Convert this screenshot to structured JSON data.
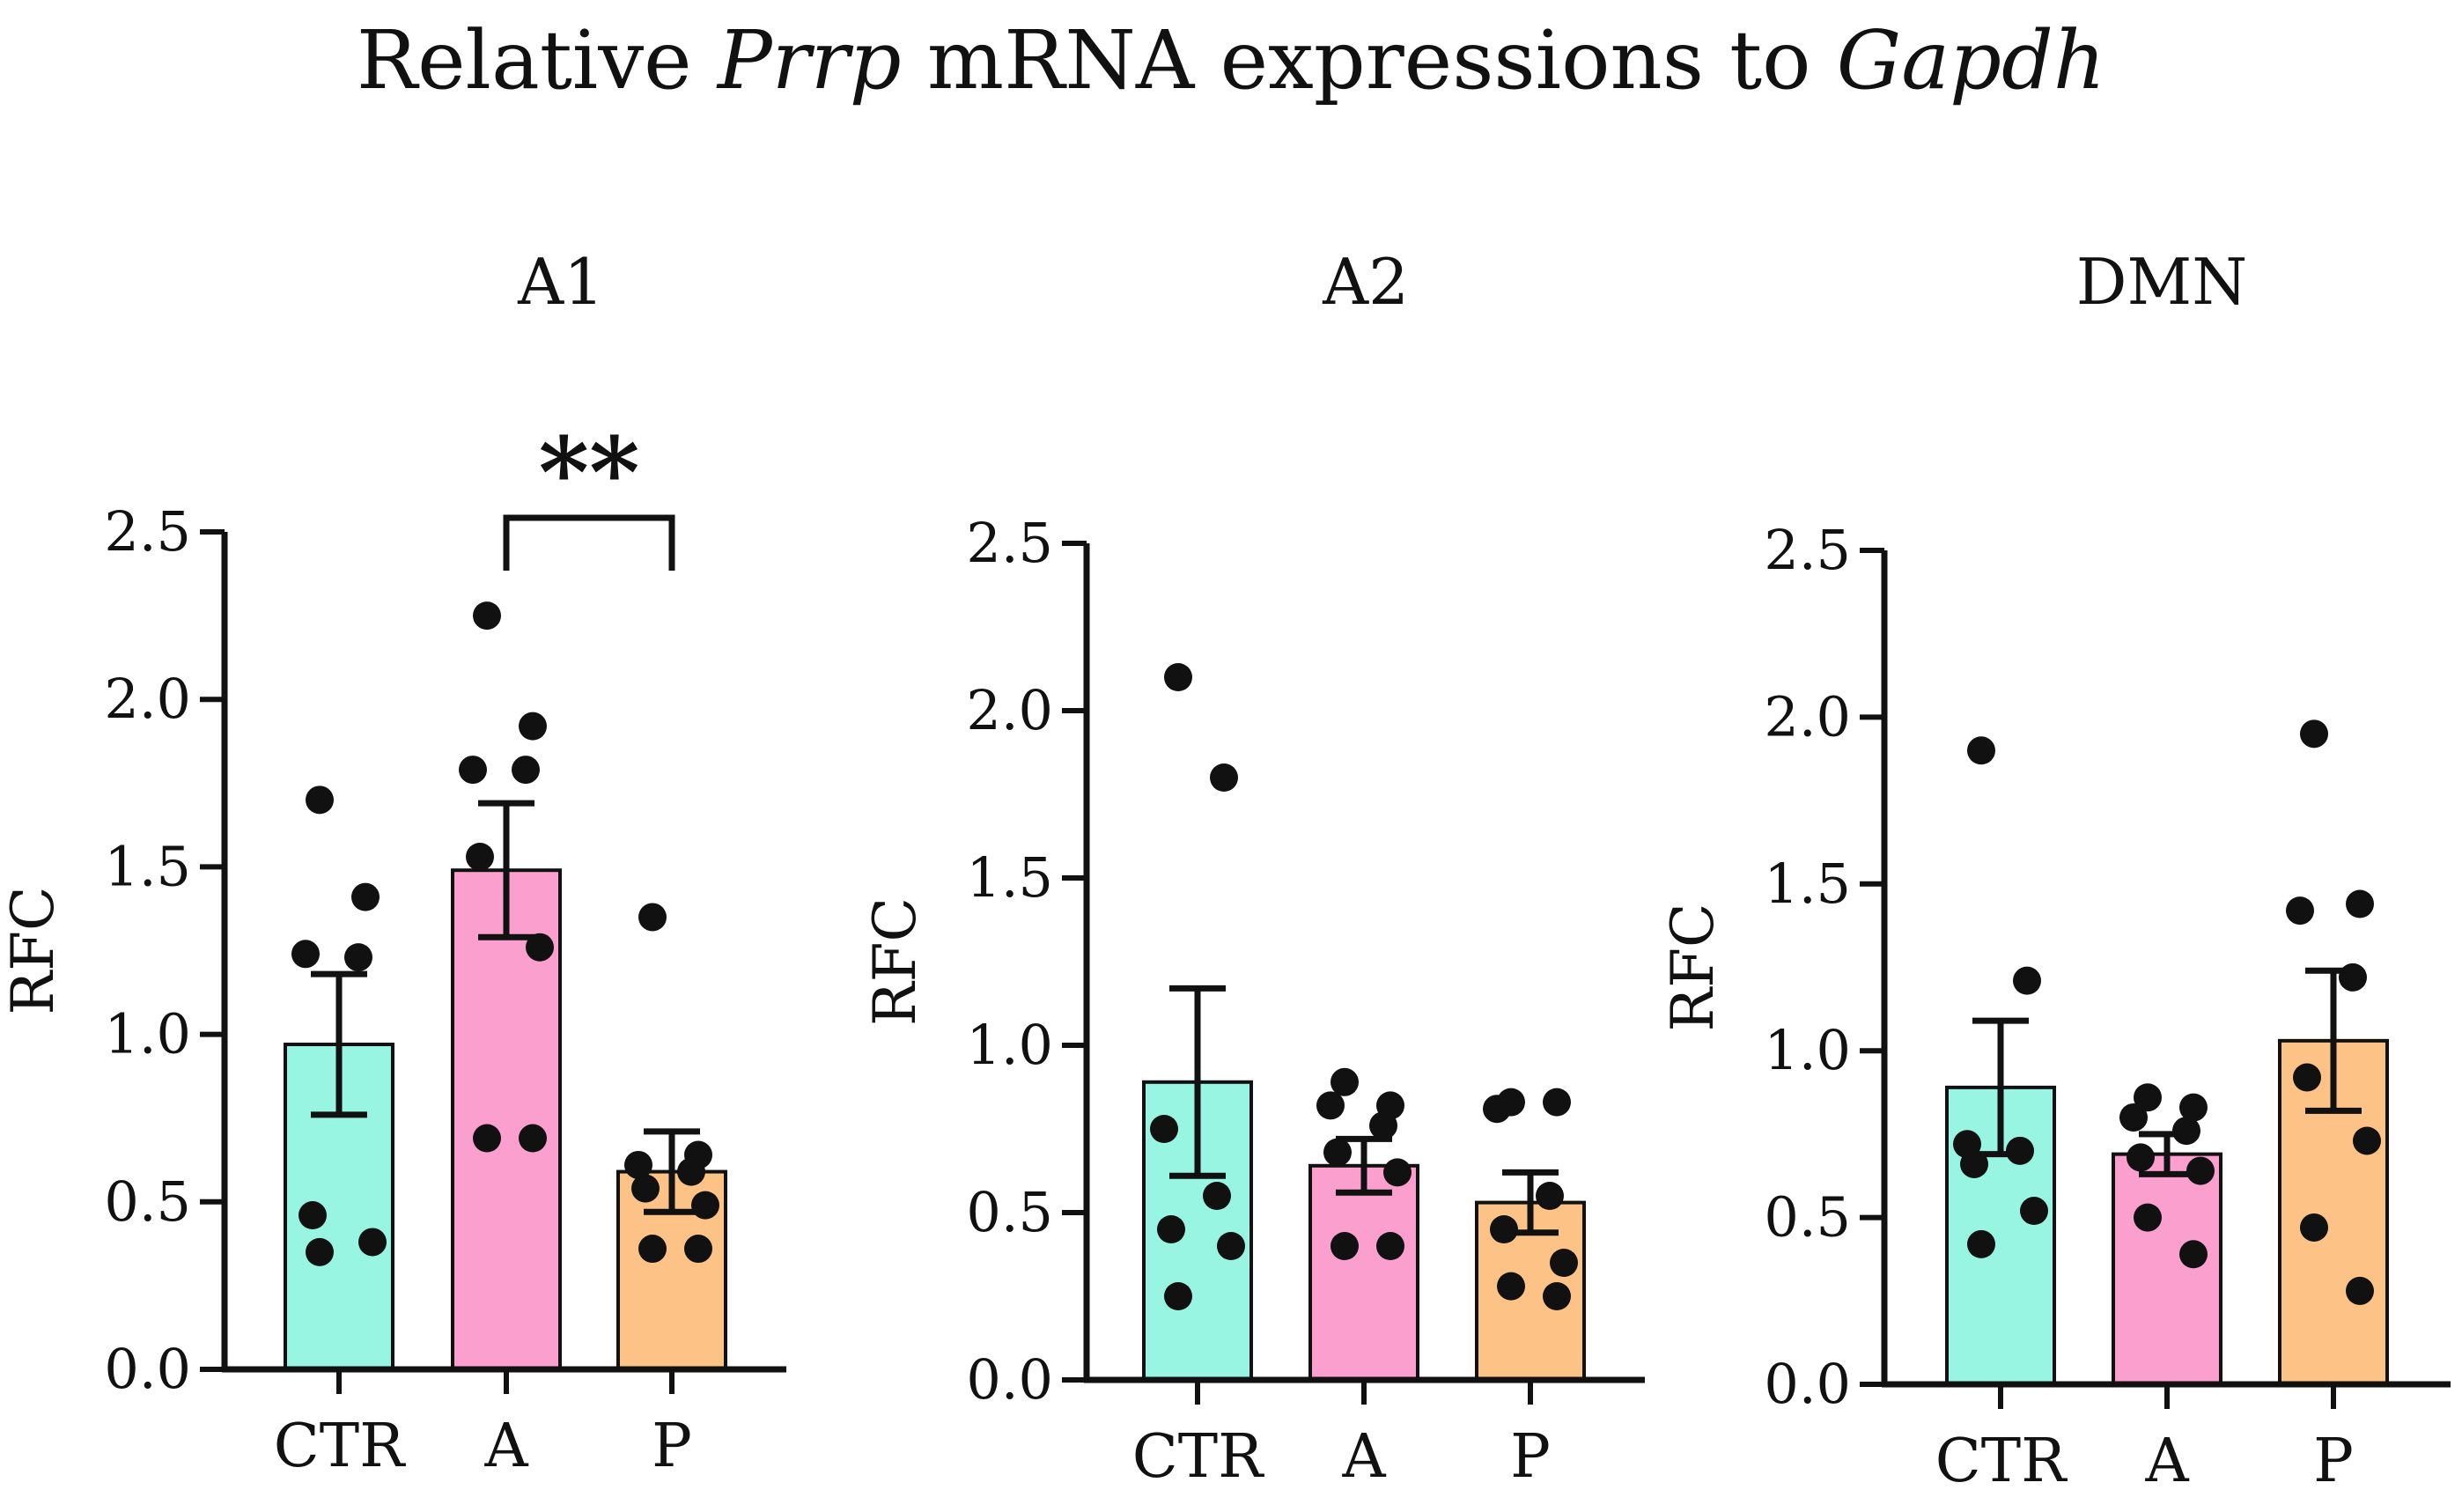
{
  "figure": {
    "title_parts": [
      {
        "text": "Relative ",
        "italic": false
      },
      {
        "text": "Prrp",
        "italic": true
      },
      {
        "text": " mRNA expressions to ",
        "italic": false
      },
      {
        "text": "Gapdh",
        "italic": true
      }
    ]
  },
  "colors": {
    "CTR": "#98f5e1",
    "A": "#fa9fce",
    "P": "#fdc286",
    "axis": "#111111",
    "point": "#111111"
  },
  "chart_data": [
    {
      "type": "bar",
      "title": "A1",
      "xlabel": "",
      "ylabel": "RFC",
      "ylim": [
        0,
        2.5
      ],
      "yticks": [
        "0.0",
        "0.5",
        "1.0",
        "1.5",
        "2.0",
        "2.5"
      ],
      "categories": [
        "CTR",
        "A",
        "P"
      ],
      "values": [
        0.97,
        1.49,
        0.59
      ],
      "sem": [
        0.21,
        0.2,
        0.12
      ],
      "points": [
        [
          1.7,
          1.41,
          1.24,
          1.23,
          0.46,
          0.38,
          0.35
        ],
        [
          2.25,
          1.92,
          1.79,
          1.79,
          1.53,
          1.26,
          0.69,
          0.69
        ],
        [
          1.35,
          0.64,
          0.61,
          0.59,
          0.54,
          0.49,
          0.36,
          0.36
        ]
      ],
      "significance": {
        "between": [
          "A",
          "P"
        ],
        "label": "**"
      }
    },
    {
      "type": "bar",
      "title": "A2",
      "xlabel": "",
      "ylabel": "RFC",
      "ylim": [
        0,
        2.5
      ],
      "yticks": [
        "0.0",
        "0.5",
        "1.0",
        "1.5",
        "2.0",
        "2.5"
      ],
      "categories": [
        "CTR",
        "A",
        "P"
      ],
      "values": [
        0.89,
        0.64,
        0.53
      ],
      "sem": [
        0.28,
        0.08,
        0.09
      ],
      "points": [
        [
          2.1,
          1.8,
          0.75,
          0.55,
          0.45,
          0.4,
          0.25
        ],
        [
          0.89,
          0.82,
          0.82,
          0.76,
          0.68,
          0.62,
          0.4,
          0.4
        ],
        [
          0.83,
          0.83,
          0.81,
          0.55,
          0.45,
          0.35,
          0.28,
          0.25
        ]
      ]
    },
    {
      "type": "bar",
      "title": "DMN",
      "xlabel": "",
      "ylabel": "RFC",
      "ylim": [
        0,
        2.5
      ],
      "yticks": [
        "0.0",
        "0.5",
        "1.0",
        "1.5",
        "2.0",
        "2.5"
      ],
      "categories": [
        "CTR",
        "A",
        "P"
      ],
      "values": [
        0.89,
        0.69,
        1.03
      ],
      "sem": [
        0.2,
        0.06,
        0.21
      ],
      "points": [
        [
          1.9,
          1.21,
          0.72,
          0.7,
          0.66,
          0.52,
          0.42
        ],
        [
          0.86,
          0.83,
          0.8,
          0.76,
          0.68,
          0.64,
          0.5,
          0.39
        ],
        [
          1.95,
          1.44,
          1.42,
          1.22,
          0.92,
          0.73,
          0.47,
          0.28
        ]
      ]
    }
  ]
}
